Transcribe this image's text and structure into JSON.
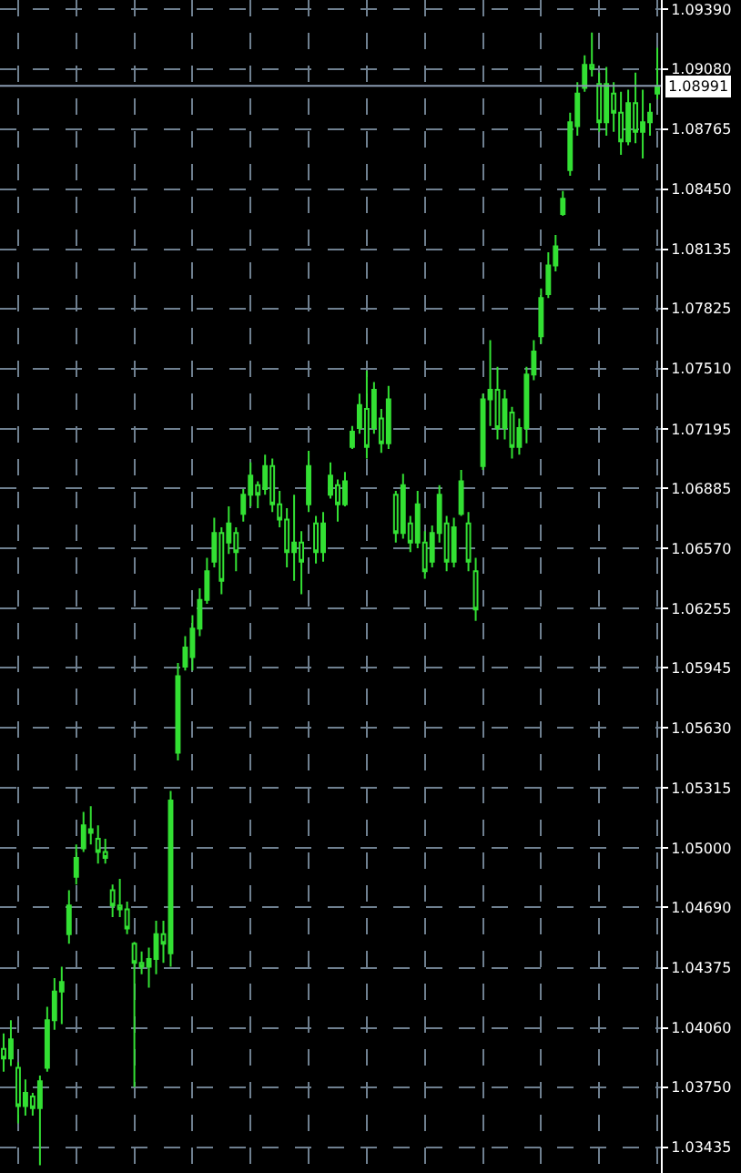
{
  "chart_data": {
    "type": "candlestick",
    "color": "#33e033",
    "grid": true,
    "categories": [
      null,
      null,
      null,
      null,
      null,
      null,
      null,
      null,
      null,
      null,
      null,
      null,
      null,
      null,
      null,
      null,
      null,
      null,
      null,
      null,
      null,
      null,
      null,
      null,
      null,
      null,
      null,
      null,
      null,
      null,
      null,
      null,
      null,
      null,
      null,
      null,
      null,
      null,
      null,
      null,
      null,
      null,
      null,
      null,
      null,
      null,
      null,
      null,
      null,
      null,
      null,
      null,
      null,
      null,
      null,
      null,
      null,
      null,
      null,
      null,
      null,
      null,
      null,
      null,
      null,
      null,
      null,
      null,
      null,
      null,
      null,
      null,
      null,
      null,
      null,
      null,
      null,
      null,
      null,
      null,
      null,
      null,
      null,
      null,
      null,
      null,
      null,
      null,
      null,
      null,
      null
    ],
    "ohlc": [
      [
        1.0395,
        1.0403,
        1.0383,
        1.039
      ],
      [
        1.039,
        1.041,
        1.0386,
        1.04
      ],
      [
        1.0385,
        1.0388,
        1.0356,
        1.0365
      ],
      [
        1.0365,
        1.0379,
        1.036,
        1.0372
      ],
      [
        1.037,
        1.0372,
        1.036,
        1.0364
      ],
      [
        1.0364,
        1.0381,
        1.0334,
        1.0378
      ],
      [
        1.0385,
        1.0417,
        1.0383,
        1.041
      ],
      [
        1.041,
        1.0432,
        1.0405,
        1.0425
      ],
      [
        1.0425,
        1.0438,
        1.0408,
        1.043
      ],
      [
        1.0455,
        1.0478,
        1.045,
        1.047
      ],
      [
        1.0485,
        1.0502,
        1.0481,
        1.0495
      ],
      [
        1.05,
        1.0519,
        1.0498,
        1.0512
      ],
      [
        1.051,
        1.0522,
        1.0502,
        1.0508
      ],
      [
        1.0505,
        1.0512,
        1.0492,
        1.0498
      ],
      [
        1.0498,
        1.0505,
        1.0492,
        1.0495
      ],
      [
        1.0478,
        1.0481,
        1.0464,
        1.047
      ],
      [
        1.047,
        1.0484,
        1.0464,
        1.0468
      ],
      [
        1.0468,
        1.0472,
        1.0455,
        1.0458
      ],
      [
        1.045,
        1.0451,
        1.0375,
        1.044
      ],
      [
        1.044,
        1.0446,
        1.0434,
        1.0438
      ],
      [
        1.0438,
        1.0448,
        1.0427,
        1.0442
      ],
      [
        1.0442,
        1.0462,
        1.0434,
        1.0455
      ],
      [
        1.0455,
        1.0462,
        1.044,
        1.045
      ],
      [
        1.0445,
        1.053,
        1.0438,
        1.0525
      ],
      [
        1.055,
        1.0597,
        1.0546,
        1.059
      ],
      [
        1.0595,
        1.0611,
        1.0593,
        1.0605
      ],
      [
        1.06,
        1.0622,
        1.0593,
        1.0615
      ],
      [
        1.0615,
        1.0636,
        1.0611,
        1.063
      ],
      [
        1.063,
        1.0652,
        1.0628,
        1.0645
      ],
      [
        1.065,
        1.0673,
        1.0647,
        1.0665
      ],
      [
        1.0665,
        1.0668,
        1.0633,
        1.064
      ],
      [
        1.066,
        1.0679,
        1.0654,
        1.067
      ],
      [
        1.0665,
        1.0668,
        1.0645,
        1.0655
      ],
      [
        1.0675,
        1.0688,
        1.0671,
        1.0685
      ],
      [
        1.0685,
        1.0702,
        1.0679,
        1.0695
      ],
      [
        1.069,
        1.0692,
        1.0678,
        1.0685
      ],
      [
        1.0688,
        1.0706,
        1.0685,
        1.07
      ],
      [
        1.07,
        1.0704,
        1.0676,
        1.068
      ],
      [
        1.068,
        1.0687,
        1.0668,
        1.0672
      ],
      [
        1.0672,
        1.0678,
        1.0647,
        1.0655
      ],
      [
        1.0655,
        1.0685,
        1.064,
        1.066
      ],
      [
        1.066,
        1.0666,
        1.0633,
        1.065
      ],
      [
        1.068,
        1.0708,
        1.0676,
        1.07
      ],
      [
        1.067,
        1.0674,
        1.0649,
        1.0655
      ],
      [
        1.0655,
        1.0676,
        1.065,
        1.067
      ],
      [
        1.0685,
        1.0702,
        1.0683,
        1.0695
      ],
      [
        1.069,
        1.0693,
        1.0671,
        1.068
      ],
      [
        1.068,
        1.0697,
        1.0679,
        1.0692
      ],
      [
        1.071,
        1.0721,
        1.0709,
        1.0718
      ],
      [
        1.072,
        1.0738,
        1.0717,
        1.0732
      ],
      [
        1.073,
        1.075,
        1.0704,
        1.071
      ],
      [
        1.072,
        1.0744,
        1.0717,
        1.074
      ],
      [
        1.0725,
        1.073,
        1.0707,
        1.0712
      ],
      [
        1.0712,
        1.0742,
        1.0709,
        1.0735
      ],
      [
        1.0685,
        1.0687,
        1.066,
        1.0665
      ],
      [
        1.0665,
        1.0696,
        1.0662,
        1.069
      ],
      [
        1.067,
        1.0674,
        1.0655,
        1.066
      ],
      [
        1.066,
        1.0687,
        1.0657,
        1.068
      ],
      [
        1.066,
        1.0666,
        1.0641,
        1.0645
      ],
      [
        1.065,
        1.0669,
        1.0647,
        1.0665
      ],
      [
        1.0665,
        1.069,
        1.066,
        1.0685
      ],
      [
        1.067,
        1.0674,
        1.0645,
        1.065
      ],
      [
        1.065,
        1.0673,
        1.0647,
        1.0668
      ],
      [
        1.0675,
        1.0698,
        1.0674,
        1.0692
      ],
      [
        1.067,
        1.0676,
        1.0645,
        1.065
      ],
      [
        1.0645,
        1.0652,
        1.0619,
        1.0625
      ],
      [
        1.07,
        1.0738,
        1.0698,
        1.0735
      ],
      [
        1.0735,
        1.0766,
        1.0721,
        1.074
      ],
      [
        1.074,
        1.0752,
        1.0714,
        1.072
      ],
      [
        1.072,
        1.074,
        1.0714,
        1.0735
      ],
      [
        1.0728,
        1.0731,
        1.0704,
        1.071
      ],
      [
        1.071,
        1.0725,
        1.0706,
        1.072
      ],
      [
        1.072,
        1.0752,
        1.0712,
        1.0748
      ],
      [
        1.0748,
        1.0766,
        1.0745,
        1.076
      ],
      [
        1.0768,
        1.0793,
        1.0764,
        1.0788
      ],
      [
        1.079,
        1.0812,
        1.0788,
        1.0805
      ],
      [
        1.0805,
        1.0821,
        1.0802,
        1.0815
      ],
      [
        1.0832,
        1.0844,
        1.0831,
        1.084
      ],
      [
        1.0855,
        1.0885,
        1.0852,
        1.088
      ],
      [
        1.0878,
        1.0901,
        1.0873,
        1.0895
      ],
      [
        1.0898,
        1.0915,
        1.0896,
        1.091
      ],
      [
        1.091,
        1.0927,
        1.0904,
        1.0908
      ],
      [
        1.09,
        1.0906,
        1.0875,
        1.088
      ],
      [
        1.088,
        1.0909,
        1.0873,
        1.09
      ],
      [
        1.0895,
        1.0901,
        1.0875,
        1.0885
      ],
      [
        1.0885,
        1.0896,
        1.0863,
        1.087
      ],
      [
        1.087,
        1.0897,
        1.0868,
        1.089
      ],
      [
        1.089,
        1.0906,
        1.0869,
        1.0875
      ],
      [
        1.0875,
        1.0897,
        1.0861,
        1.088
      ],
      [
        1.088,
        1.089,
        1.0873,
        1.0885
      ],
      [
        1.0895,
        1.0919,
        1.0892,
        1.0899
      ]
    ],
    "ylim": [
      1.033,
      1.0944
    ],
    "yticks": [
      {
        "value": 1.0939,
        "label": "1.09390"
      },
      {
        "value": 1.0908,
        "label": "1.09080"
      },
      {
        "value": 1.08765,
        "label": "1.08765"
      },
      {
        "value": 1.0845,
        "label": "1.08450"
      },
      {
        "value": 1.08135,
        "label": "1.08135"
      },
      {
        "value": 1.07825,
        "label": "1.07825"
      },
      {
        "value": 1.0751,
        "label": "1.07510"
      },
      {
        "value": 1.07195,
        "label": "1.07195"
      },
      {
        "value": 1.06885,
        "label": "1.06885"
      },
      {
        "value": 1.0657,
        "label": "1.06570"
      },
      {
        "value": 1.06255,
        "label": "1.06255"
      },
      {
        "value": 1.05945,
        "label": "1.05945"
      },
      {
        "value": 1.0563,
        "label": "1.05630"
      },
      {
        "value": 1.05315,
        "label": "1.05315"
      },
      {
        "value": 1.05,
        "label": "1.05000"
      },
      {
        "value": 1.0469,
        "label": "1.04690"
      },
      {
        "value": 1.04375,
        "label": "1.04375"
      },
      {
        "value": 1.0406,
        "label": "1.04060"
      },
      {
        "value": 1.0375,
        "label": "1.03750"
      },
      {
        "value": 1.03435,
        "label": "1.03435"
      }
    ],
    "ref_lines": [
      {
        "axis": "y",
        "value": 1.08991,
        "label": "1.08991",
        "color": "#8a9ab0",
        "line_style": "solid"
      }
    ]
  }
}
